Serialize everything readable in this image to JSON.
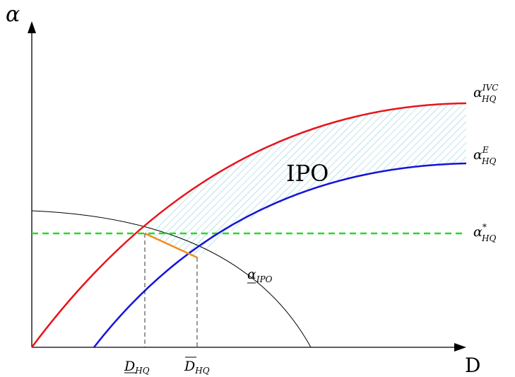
{
  "axes": {
    "y_label": "α",
    "x_label": "D"
  },
  "region_label": "IPO",
  "curves": {
    "ivc": {
      "base": "α",
      "sub": "HQ",
      "sup": "IVC",
      "color": "#e8141b"
    },
    "e": {
      "base": "α",
      "sub": "HQ",
      "sup": "E",
      "color": "#1414d9"
    },
    "star": {
      "base": "α",
      "sub": "HQ",
      "sup": "*",
      "color": "#22dd22"
    },
    "ipo": {
      "base": "α",
      "sub": "IPO",
      "color": "#000000"
    },
    "segment_color": "#f28c1a",
    "hatch_color": "#7ec8d8"
  },
  "ticks": {
    "d_low": {
      "base": "D",
      "sub": "HQ",
      "bar": "under"
    },
    "d_high": {
      "base": "D",
      "sub": "HQ",
      "bar": "over"
    }
  }
}
